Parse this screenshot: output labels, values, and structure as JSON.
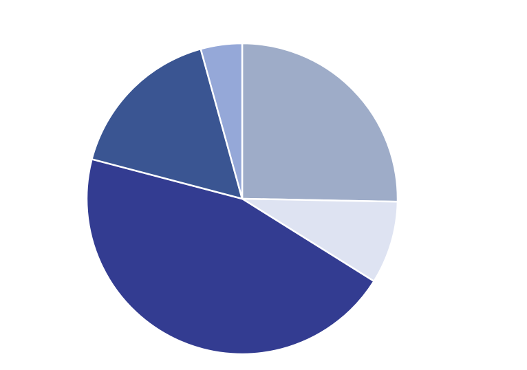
{
  "chart_data": {
    "type": "pie",
    "slices": [
      {
        "value": 25.3,
        "color": "#9eacc8"
      },
      {
        "value": 8.6,
        "color": "#dee3f2"
      },
      {
        "value": 45.2,
        "color": "#333c91"
      },
      {
        "value": 16.6,
        "color": "#3a5592"
      },
      {
        "value": 4.3,
        "color": "#95a8d8"
      }
    ],
    "start_angle": "12 o'clock",
    "direction": "clockwise"
  }
}
